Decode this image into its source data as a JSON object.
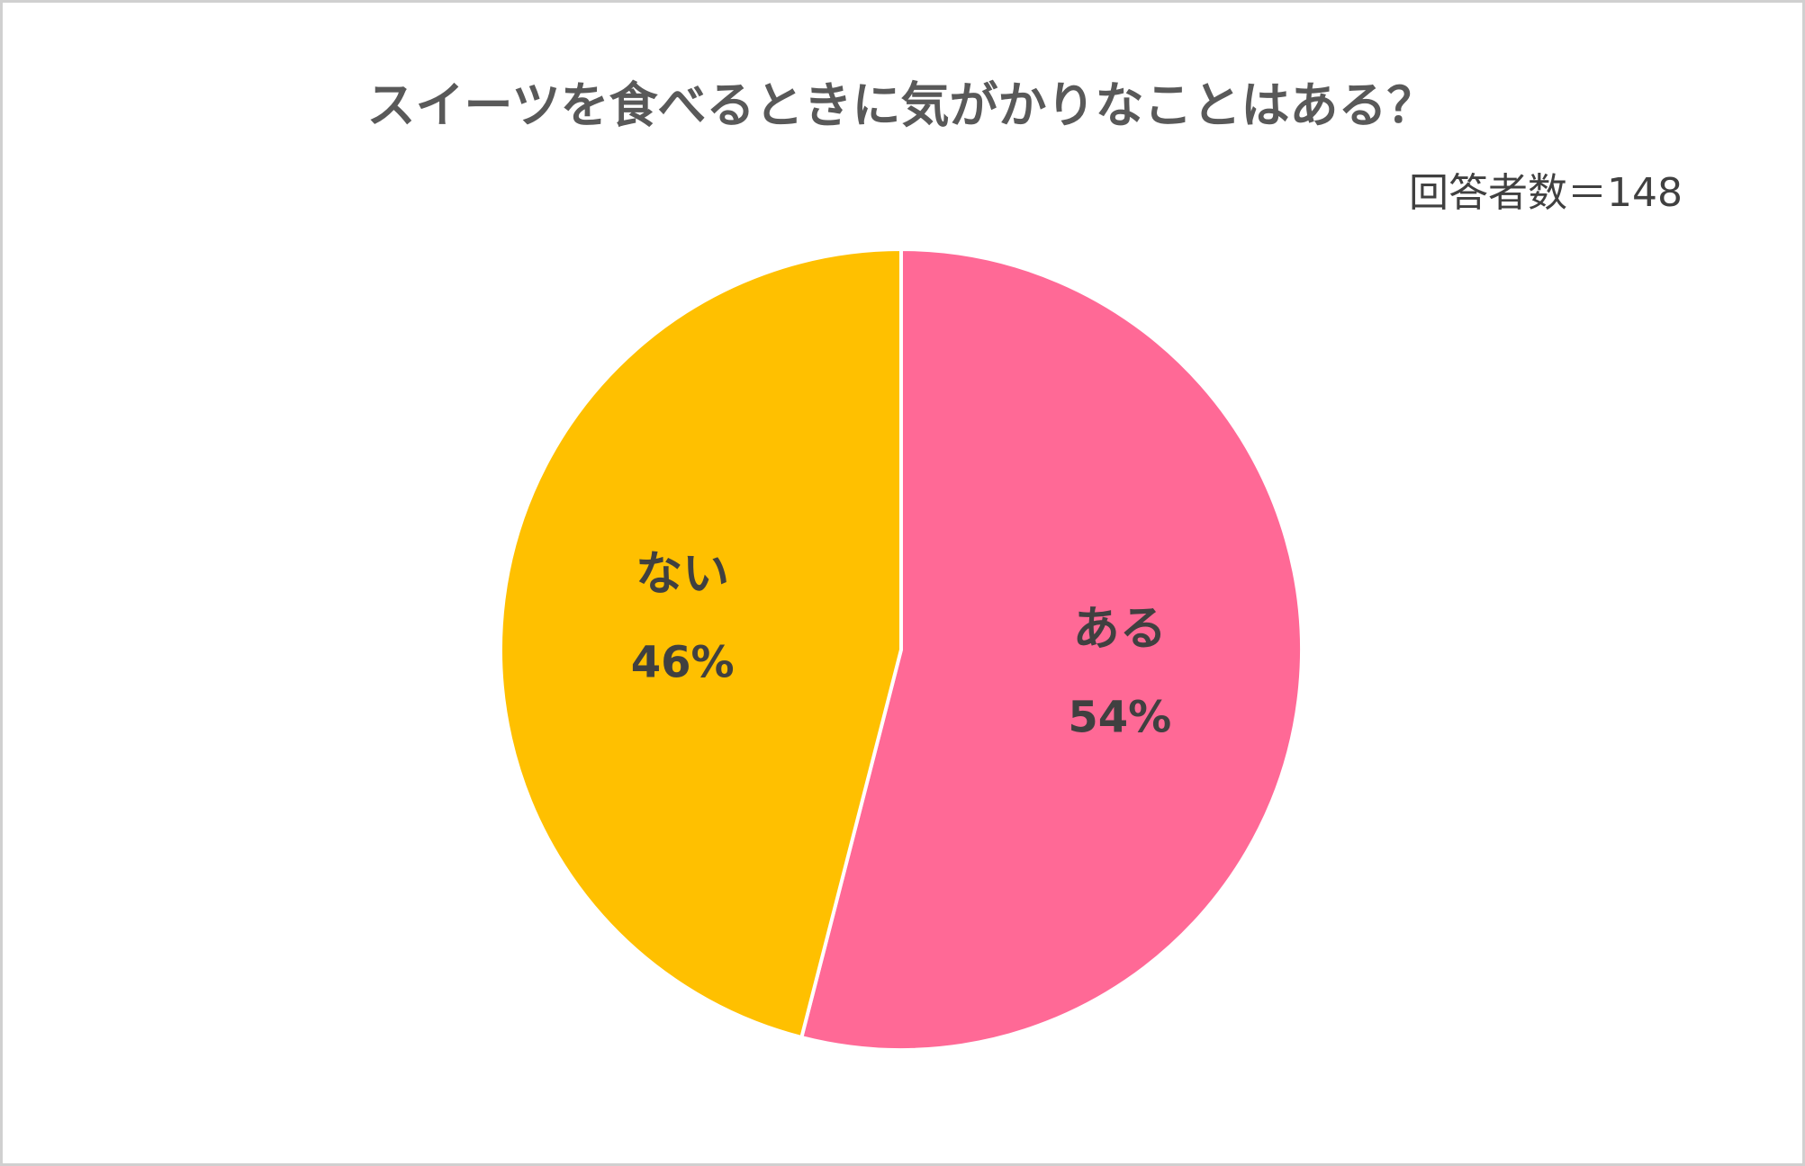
{
  "chart_data": {
    "type": "pie",
    "title": "スイーツを食べるときに気がかりなことはある？",
    "subtitle": "回答者数＝148",
    "categories": [
      "ある",
      "ない"
    ],
    "values": [
      54,
      46
    ],
    "value_labels": [
      "54%",
      "46%"
    ],
    "colors": [
      "#ff6996",
      "#ffc000"
    ]
  }
}
